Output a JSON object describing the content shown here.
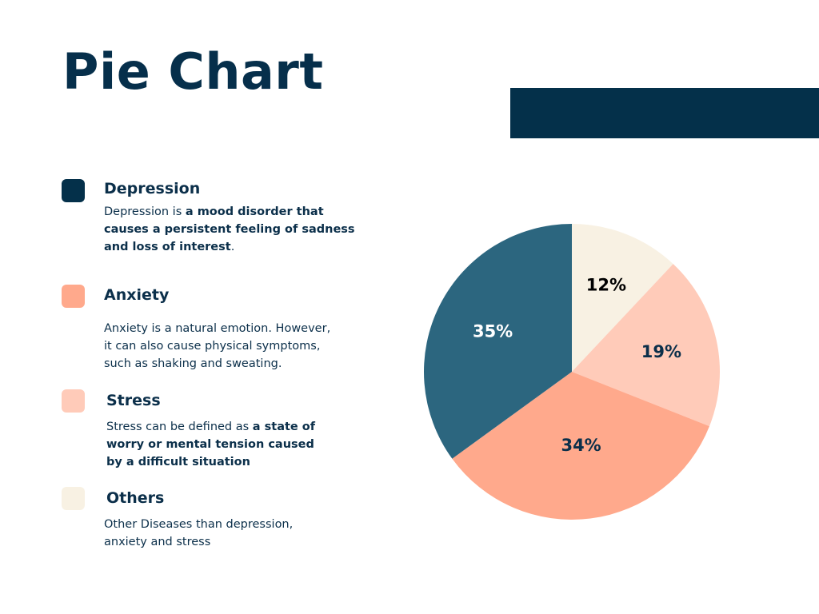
{
  "page": {
    "title": "Pie Chart"
  },
  "legend": [
    {
      "title": "Depression",
      "color": "#04304a",
      "desc_parts": [
        {
          "text": "Depression is ",
          "bold": false
        },
        {
          "text": "a mood disorder that causes a persistent feeling of sadness and loss of interest",
          "bold": true
        },
        {
          "text": ".",
          "bold": false
        }
      ]
    },
    {
      "title": "Anxiety",
      "color": "#ffa98c",
      "desc_parts": [
        {
          "text": "Anxiety is a natural emotion. However, it can also cause physical symptoms, such as shaking and sweating.",
          "bold": false
        }
      ]
    },
    {
      "title": "Stress",
      "color": "#ffcbb9",
      "desc_parts": [
        {
          "text": "Stress can be defined as ",
          "bold": false
        },
        {
          "text": "a state of worry or mental tension caused by a difficult situation",
          "bold": true
        }
      ]
    },
    {
      "title": "Others",
      "color": "#f8f1e3",
      "desc_parts": [
        {
          "text": "Other Diseases than depression, anxiety and stress",
          "bold": false
        }
      ]
    }
  ],
  "chart_data": {
    "type": "pie",
    "title": "Pie Chart",
    "slices": [
      {
        "label": "12%",
        "value": 12,
        "color": "#f8f1e3",
        "label_color": "#000000"
      },
      {
        "label": "19%",
        "value": 19,
        "color": "#ffcbb9",
        "label_color": "#0b2f4a"
      },
      {
        "label": "34%",
        "value": 34,
        "color": "#ffa98c",
        "label_color": "#0b2f4a"
      },
      {
        "label": "35%",
        "value": 35,
        "color": "#2c667f",
        "label_color": "#ffffff"
      }
    ],
    "start": "12 o'clock",
    "direction": "clockwise"
  }
}
